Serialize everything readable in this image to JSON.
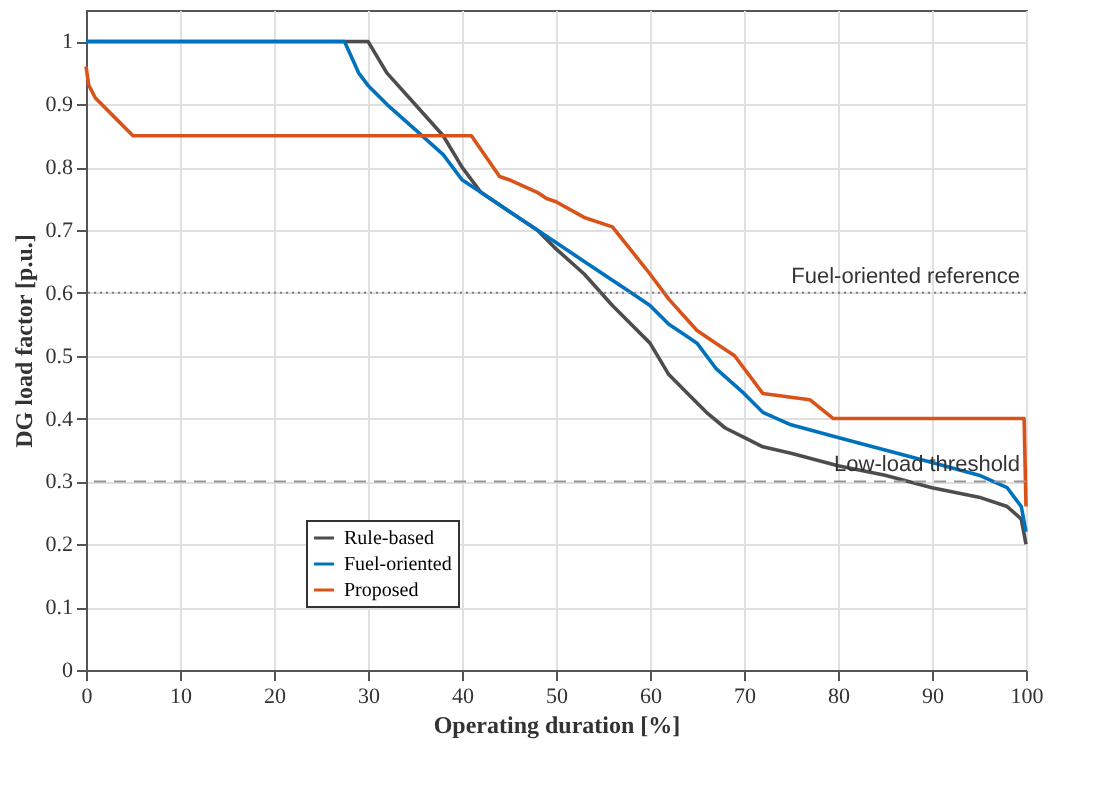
{
  "chart_data": {
    "type": "line",
    "xlabel": "Operating duration [%]",
    "ylabel": "DG load factor [p.u.]",
    "xlim": [
      0,
      100
    ],
    "xticks": [
      0,
      10,
      20,
      30,
      40,
      50,
      60,
      70,
      80,
      90,
      100
    ],
    "ylim": [
      0,
      1.05
    ],
    "yticks": [
      0,
      0.1,
      0.2,
      0.3,
      0.4,
      0.5,
      0.6,
      0.7,
      0.8,
      0.9,
      1
    ],
    "grid": true,
    "legend": "bottom left",
    "line_style": "solid",
    "marker": "none",
    "series": [
      {
        "name": "Rule-based",
        "color": "#4d4d4d",
        "x": [
          0,
          30,
          32,
          35,
          38,
          40,
          42,
          45,
          48,
          50,
          53,
          56,
          60,
          62,
          64,
          66,
          68,
          70,
          72,
          75,
          80,
          85,
          90,
          95,
          98,
          99.5,
          100
        ],
        "values": [
          1,
          1,
          0.95,
          0.9,
          0.85,
          0.8,
          0.76,
          0.73,
          0.7,
          0.67,
          0.63,
          0.58,
          0.52,
          0.47,
          0.44,
          0.41,
          0.385,
          0.37,
          0.355,
          0.345,
          0.325,
          0.31,
          0.29,
          0.275,
          0.26,
          0.24,
          0.2
        ]
      },
      {
        "name": "Fuel-oriented",
        "color": "#0072bd",
        "x": [
          0,
          27.5,
          29,
          30,
          32,
          35,
          38,
          40,
          42,
          45,
          48,
          50,
          53,
          55,
          58,
          60,
          62,
          64,
          65,
          67,
          70,
          72,
          75,
          80,
          85,
          90,
          95,
          98,
          99.5,
          100
        ],
        "values": [
          1,
          1,
          0.95,
          0.93,
          0.9,
          0.86,
          0.82,
          0.78,
          0.76,
          0.73,
          0.7,
          0.68,
          0.65,
          0.63,
          0.6,
          0.58,
          0.55,
          0.53,
          0.52,
          0.48,
          0.44,
          0.41,
          0.39,
          0.37,
          0.35,
          0.33,
          0.31,
          0.29,
          0.26,
          0.22
        ]
      },
      {
        "name": "Proposed",
        "color": "#d95319",
        "x": [
          0,
          0.3,
          1,
          3,
          5,
          41,
          44,
          45,
          48,
          49,
          50,
          53,
          56,
          60,
          62,
          65,
          67,
          69,
          72,
          77,
          79.5,
          99.8,
          100
        ],
        "values": [
          0.96,
          0.93,
          0.91,
          0.88,
          0.85,
          0.85,
          0.785,
          0.78,
          0.76,
          0.75,
          0.745,
          0.72,
          0.705,
          0.63,
          0.59,
          0.54,
          0.52,
          0.5,
          0.44,
          0.43,
          0.4,
          0.4,
          0.26
        ]
      }
    ],
    "ref_lines": [
      {
        "axis": "y",
        "value": 0.6,
        "label": "Fuel-oriented reference",
        "color": "#808080",
        "line_style": "dotted"
      },
      {
        "axis": "y",
        "value": 0.3,
        "label": "Low-load threshold",
        "color": "#999999",
        "line_style": "dashed"
      }
    ]
  }
}
